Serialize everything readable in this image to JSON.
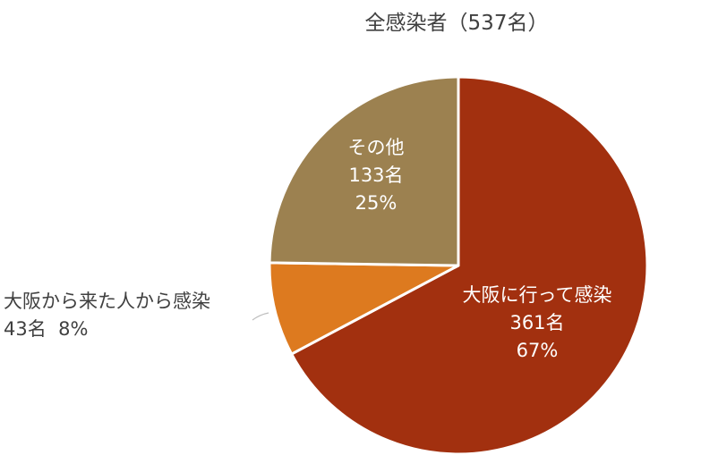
{
  "chart_data": {
    "type": "pie",
    "title": "全感染者（537名）",
    "start_angle_deg": 0,
    "direction": "clockwise",
    "slices": [
      {
        "name": "大阪に行って感染",
        "count": "361名",
        "percent": "67%",
        "value": 361,
        "color": "#a2300f"
      },
      {
        "name": "大阪から来た人から感染",
        "count": "43名",
        "percent": "8%",
        "value": 43,
        "color": "#dd7a1f"
      },
      {
        "name": "その他",
        "count": "133名",
        "percent": "25%",
        "value": 133,
        "color": "#9c8150"
      }
    ]
  }
}
